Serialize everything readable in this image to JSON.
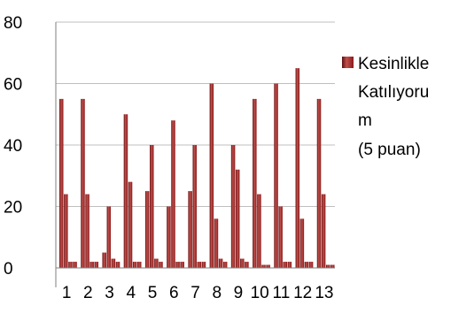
{
  "chart_data": {
    "type": "bar",
    "categories": [
      "1",
      "2",
      "3",
      "4",
      "5",
      "6",
      "7",
      "8",
      "9",
      "10",
      "11",
      "12",
      "13"
    ],
    "series": [
      {
        "name": "Kesinlikle Katılıyorum (5 puan)",
        "values": [
          55,
          55,
          5,
          50,
          25,
          20,
          25,
          60,
          40,
          55,
          60,
          65,
          55
        ]
      },
      {
        "values": [
          24,
          24,
          20,
          28,
          40,
          48,
          40,
          16,
          32,
          24,
          20,
          16,
          24
        ]
      },
      {
        "values": [
          2,
          2,
          3,
          2,
          3,
          2,
          2,
          3,
          3,
          1,
          2,
          2,
          1
        ]
      },
      {
        "values": [
          2,
          2,
          2,
          2,
          2,
          2,
          2,
          2,
          2,
          1,
          2,
          2,
          1
        ]
      }
    ],
    "legend": {
      "position": "right",
      "lines": [
        "Kesinlikle",
        "Katılıyoru",
        "m",
        "(5 puan)"
      ]
    },
    "ylim": [
      0,
      80
    ],
    "yticks": [
      "0",
      "20",
      "40",
      "60",
      "80"
    ],
    "grid": true,
    "colors": {
      "bar": "#8b1a1a",
      "bar_light": "#c0504d",
      "bar_dark": "#5e0f0f",
      "grid": "#bfbfbf",
      "axis": "#7f7f7f"
    }
  }
}
